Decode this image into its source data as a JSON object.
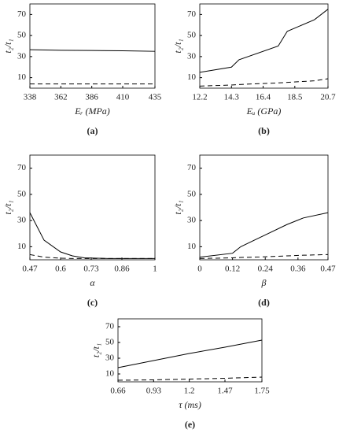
{
  "chart_data": [
    {
      "type": "line",
      "panel_label": "(a)",
      "xlabel": "Eᵣ (MPa)",
      "ylabel": "t₂/t₁",
      "x": [
        338,
        362,
        386,
        410,
        435
      ],
      "xlim": [
        338,
        435
      ],
      "xticks": [
        338,
        362,
        386,
        410,
        435
      ],
      "ylim": [
        0,
        80
      ],
      "yticks": [
        10,
        30,
        50,
        70
      ],
      "series": [
        {
          "color": "#000000",
          "style": "solid",
          "values": [
            36.5,
            36,
            35.8,
            35.5,
            35
          ]
        },
        {
          "color": "#000000",
          "style": "dashed",
          "values": [
            4,
            4,
            4,
            4,
            4
          ]
        }
      ]
    },
    {
      "type": "line",
      "panel_label": "(b)",
      "xlabel": "Eᵤ (GPa)",
      "ylabel": "t₂/t₁",
      "x": [
        12.2,
        14.3,
        14.8,
        17.4,
        18.0,
        19.8,
        20.7
      ],
      "xlim": [
        12.2,
        20.7
      ],
      "xticks": [
        12.2,
        14.3,
        16.4,
        18.5,
        20.7
      ],
      "ylim": [
        0,
        80
      ],
      "yticks": [
        10,
        30,
        50,
        70
      ],
      "series": [
        {
          "color": "#000000",
          "style": "solid",
          "values": [
            15,
            20,
            27,
            40,
            54,
            65,
            75
          ]
        },
        {
          "color": "#000000",
          "style": "dashed",
          "values": [
            2,
            3,
            3.5,
            5,
            5.5,
            7,
            9
          ]
        }
      ]
    },
    {
      "type": "line",
      "panel_label": "(c)",
      "xlabel": "α",
      "ylabel": "t₂/t₁",
      "x": [
        0.47,
        0.53,
        0.6,
        0.65,
        0.7,
        0.8,
        0.9,
        1
      ],
      "xlim": [
        0.47,
        1
      ],
      "xticks": [
        0.47,
        0.6,
        0.73,
        0.86,
        1
      ],
      "ylim": [
        0,
        80
      ],
      "yticks": [
        10,
        30,
        50,
        70
      ],
      "series": [
        {
          "color": "#000000",
          "style": "solid",
          "values": [
            36,
            15,
            6,
            3,
            1.5,
            1,
            1,
            1
          ]
        },
        {
          "color": "#000000",
          "style": "dashed",
          "values": [
            4,
            2,
            1.2,
            1,
            1,
            1,
            1,
            1
          ]
        }
      ]
    },
    {
      "type": "line",
      "panel_label": "(d)",
      "xlabel": "β",
      "ylabel": "t₂/t₁",
      "x": [
        0,
        0.12,
        0.15,
        0.2,
        0.24,
        0.32,
        0.38,
        0.47
      ],
      "xlim": [
        0,
        0.47
      ],
      "xticks": [
        0,
        0.12,
        0.24,
        0.36,
        0.47
      ],
      "ylim": [
        0,
        80
      ],
      "yticks": [
        10,
        30,
        50,
        70
      ],
      "series": [
        {
          "color": "#000000",
          "style": "solid",
          "values": [
            2,
            5,
            10,
            15,
            19,
            27,
            32,
            36
          ]
        },
        {
          "color": "#000000",
          "style": "dashed",
          "values": [
            1,
            1.5,
            1.8,
            2,
            2.3,
            3,
            3.5,
            4
          ]
        }
      ]
    },
    {
      "type": "line",
      "panel_label": "(e)",
      "xlabel": "τ (ms)",
      "ylabel": "t₂/t₁",
      "x": [
        0.66,
        0.93,
        1.2,
        1.47,
        1.75
      ],
      "xlim": [
        0.66,
        1.75
      ],
      "xticks": [
        0.66,
        0.93,
        1.2,
        1.47,
        1.75
      ],
      "ylim": [
        0,
        80
      ],
      "yticks": [
        10,
        30,
        50,
        70
      ],
      "series": [
        {
          "color": "#000000",
          "style": "solid",
          "values": [
            18,
            27,
            36,
            44,
            53
          ]
        },
        {
          "color": "#000000",
          "style": "dashed",
          "values": [
            2,
            2.5,
            3.5,
            4.5,
            6
          ]
        }
      ]
    }
  ]
}
